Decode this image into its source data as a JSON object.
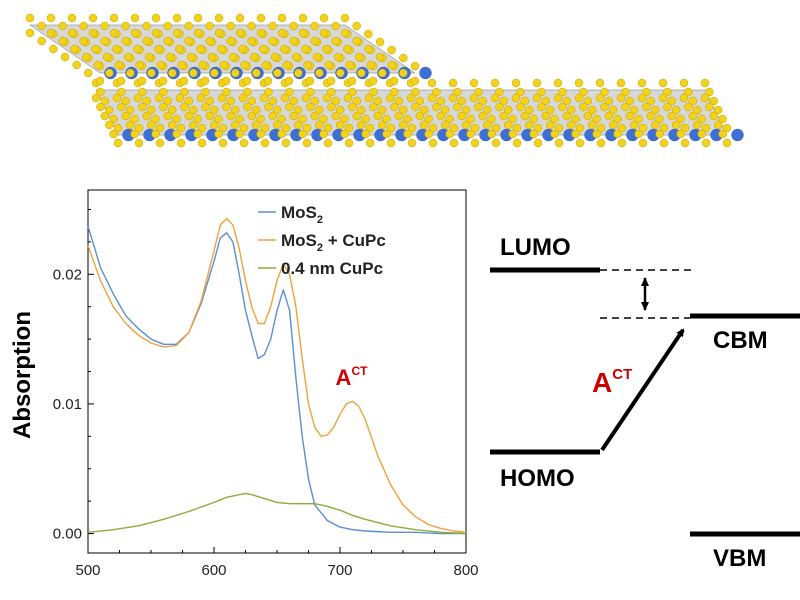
{
  "structure": {
    "layer_colors": {
      "sulfur": "#f2d21a",
      "molybdenum": "#3d6fd6",
      "plane": "#8e8e8e"
    }
  },
  "chart_data": {
    "type": "line",
    "xlabel": "",
    "ylabel": "Absorption",
    "xlim": [
      500,
      800
    ],
    "ylim": [
      -0.0015,
      0.0265
    ],
    "xticks": [
      "500",
      "600",
      "700",
      "800"
    ],
    "yticks": [
      "0.00",
      "0.01",
      "0.02"
    ],
    "xtick_values": [
      500,
      600,
      700,
      800
    ],
    "ytick_values": [
      0.0,
      0.01,
      0.02
    ],
    "grid": false,
    "legend": {
      "placement": "top-right",
      "entries": [
        {
          "text": "MoS",
          "sub": "2",
          "after": ""
        },
        {
          "text": "MoS",
          "sub": "2",
          "after": " + CuPc"
        },
        {
          "text": "0.4 nm CuPc",
          "sub": "",
          "after": ""
        }
      ]
    },
    "annotation": {
      "text": "A",
      "sup": "CT",
      "x": 706,
      "y": 0.0107,
      "color": "#cc0000"
    },
    "series": [
      {
        "color": "#5b8fd0",
        "x": [
          500,
          510,
          520,
          530,
          540,
          550,
          560,
          570,
          580,
          590,
          600,
          605,
          610,
          615,
          620,
          625,
          630,
          635,
          640,
          645,
          650,
          655,
          660,
          665,
          670,
          675,
          680,
          690,
          700,
          710,
          720,
          740,
          760,
          780,
          800
        ],
        "y": [
          0.0237,
          0.0205,
          0.0185,
          0.0168,
          0.0158,
          0.015,
          0.0146,
          0.0146,
          0.0155,
          0.0178,
          0.021,
          0.0228,
          0.0232,
          0.0225,
          0.02,
          0.0172,
          0.0153,
          0.0135,
          0.0138,
          0.015,
          0.0172,
          0.0188,
          0.0172,
          0.012,
          0.0075,
          0.0042,
          0.0022,
          0.001,
          0.0005,
          0.0003,
          0.0002,
          0.0001,
          0.0001,
          0.0,
          0.0
        ]
      },
      {
        "color": "#f0a23c",
        "x": [
          500,
          510,
          520,
          530,
          540,
          550,
          560,
          570,
          580,
          590,
          600,
          605,
          610,
          615,
          620,
          625,
          630,
          635,
          640,
          645,
          650,
          655,
          660,
          665,
          670,
          675,
          680,
          685,
          690,
          695,
          700,
          705,
          710,
          715,
          720,
          725,
          730,
          740,
          750,
          760,
          770,
          780,
          790,
          800
        ],
        "y": [
          0.0222,
          0.0195,
          0.0175,
          0.0162,
          0.0153,
          0.0147,
          0.0144,
          0.0145,
          0.0155,
          0.018,
          0.0218,
          0.0238,
          0.0243,
          0.0238,
          0.022,
          0.0195,
          0.0175,
          0.0162,
          0.0162,
          0.0175,
          0.0195,
          0.0208,
          0.02,
          0.0175,
          0.0135,
          0.01,
          0.0082,
          0.0075,
          0.0076,
          0.0082,
          0.0092,
          0.01,
          0.0102,
          0.0098,
          0.0088,
          0.0074,
          0.006,
          0.0038,
          0.0022,
          0.0013,
          0.0007,
          0.0004,
          0.0002,
          0.0001
        ]
      },
      {
        "color": "#8fac3a",
        "x": [
          500,
          520,
          540,
          560,
          580,
          600,
          610,
          620,
          625,
          630,
          640,
          650,
          660,
          670,
          680,
          690,
          700,
          710,
          720,
          740,
          760,
          780,
          800
        ],
        "y": [
          0.0001,
          0.0003,
          0.0006,
          0.0011,
          0.0017,
          0.0024,
          0.0028,
          0.003,
          0.0031,
          0.003,
          0.0027,
          0.0024,
          0.0023,
          0.0023,
          0.0023,
          0.0021,
          0.0018,
          0.0014,
          0.0011,
          0.0006,
          0.0003,
          0.0001,
          0.0
        ]
      }
    ]
  },
  "diagram": {
    "labels": {
      "lumo": "LUMO",
      "homo": "HOMO",
      "cbm": "CBM",
      "vbm": "VBM",
      "act": "A",
      "act_sup": "CT"
    },
    "act_color": "#cc0000"
  }
}
